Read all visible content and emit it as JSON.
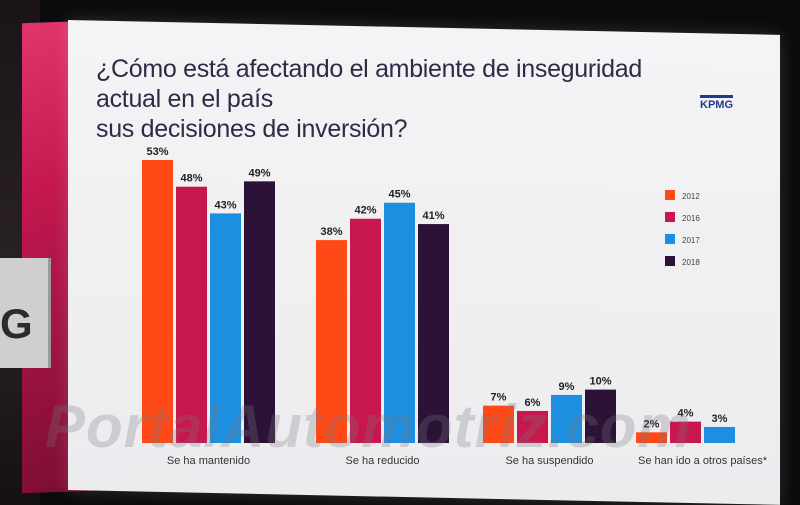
{
  "title_line1": "¿Cómo está afectando el ambiente  de inseguridad actual en el país",
  "title_line2": "sus decisiones de inversión?",
  "logo_text": "KPMG",
  "sign_letter": "G",
  "watermark": "PortalAutomotriz.com",
  "chart_data": {
    "type": "bar",
    "title": "¿Cómo está afectando el ambiente  de inseguridad actual en el país sus decisiones de inversión?",
    "categories": [
      "Se ha mantenido",
      "Se ha reducido",
      "Se ha suspendido",
      "Se han ido a otros países*"
    ],
    "series": [
      {
        "name": "2012",
        "color": "#ff4a17",
        "values": [
          53,
          38,
          7,
          2
        ]
      },
      {
        "name": "2016",
        "color": "#c8174d",
        "values": [
          48,
          42,
          6,
          4
        ]
      },
      {
        "name": "2017",
        "color": "#1c8fe0",
        "values": [
          43,
          45,
          9,
          3
        ]
      },
      {
        "name": "2018",
        "color": "#2b1236",
        "values": [
          49,
          41,
          10,
          null
        ]
      }
    ],
    "data_labels": [
      [
        "53%",
        "48%",
        "43%",
        "49%"
      ],
      [
        "38%",
        "42%",
        "45%",
        "41%"
      ],
      [
        "7%",
        "6%",
        "9%",
        "10%"
      ],
      [
        "2%",
        "4%",
        "3%",
        ""
      ]
    ],
    "ylim": [
      0,
      55
    ],
    "grid": false,
    "legend_position": "right"
  }
}
